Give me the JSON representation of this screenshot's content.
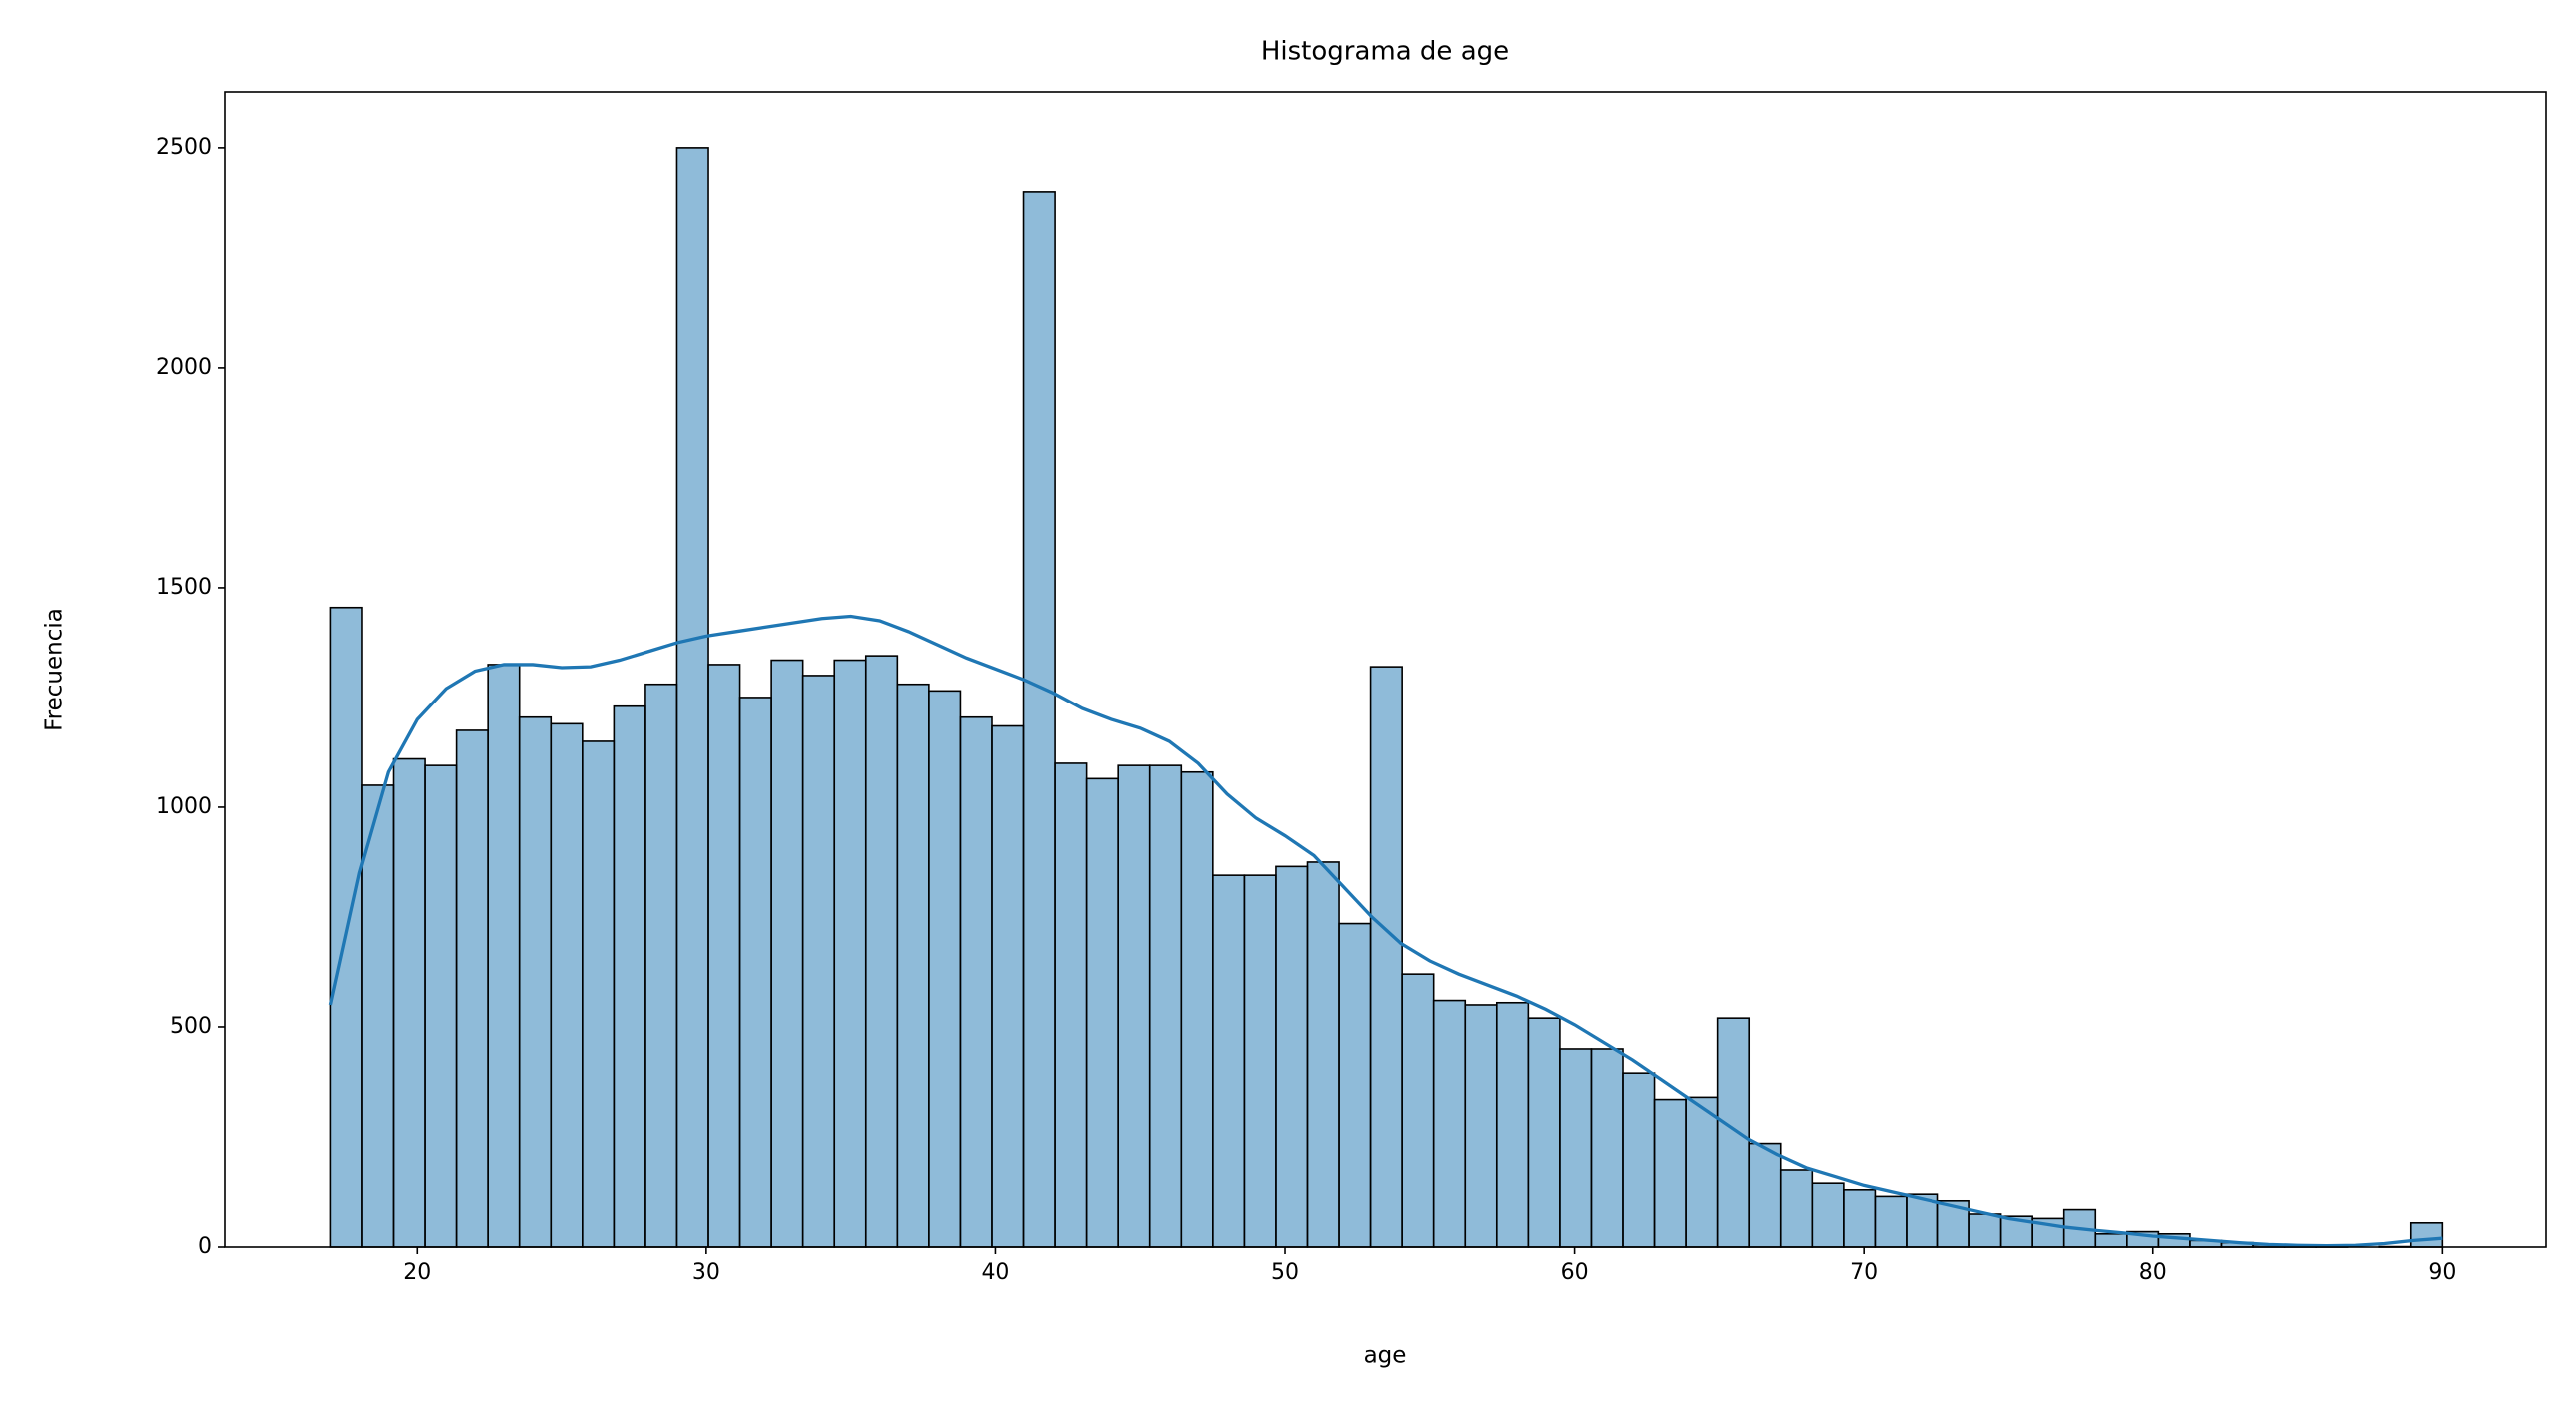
{
  "chart_data": {
    "type": "histogram",
    "title": "Histograma de age",
    "x_label": "age",
    "y_label": "Frecuencia",
    "bins": [
      17,
      18.09,
      19.179,
      20.269,
      21.358,
      22.448,
      23.537,
      24.627,
      25.716,
      26.806,
      27.896,
      28.985,
      30.075,
      31.164,
      32.254,
      33.343,
      34.433,
      35.522,
      36.612,
      37.701,
      38.791,
      39.881,
      40.97,
      42.06,
      43.149,
      44.239,
      45.328,
      46.418,
      47.507,
      48.597,
      49.687,
      50.776,
      51.866,
      52.955,
      54.045,
      55.134,
      56.224,
      57.313,
      58.403,
      59.493,
      60.582,
      61.672,
      62.761,
      63.851,
      64.94,
      66.03,
      67.119,
      68.209,
      69.299,
      70.388,
      71.478,
      72.567,
      73.657,
      74.746,
      75.836,
      76.925,
      78.015,
      79.104,
      80.194,
      81.284,
      82.373,
      83.463,
      84.552,
      85.642,
      86.731,
      87.821,
      88.91,
      90
    ],
    "values": [
      1455,
      1050,
      1110,
      1095,
      1175,
      1325,
      1205,
      1190,
      1150,
      1230,
      1280,
      2500,
      1325,
      1250,
      1335,
      1300,
      1335,
      1345,
      1280,
      1265,
      1205,
      1185,
      2400,
      1100,
      1065,
      1095,
      1095,
      1080,
      845,
      845,
      865,
      875,
      735,
      1320,
      620,
      560,
      550,
      555,
      520,
      450,
      450,
      395,
      335,
      340,
      520,
      235,
      175,
      145,
      130,
      115,
      120,
      105,
      75,
      70,
      65,
      85,
      30,
      35,
      30,
      15,
      10,
      5,
      3,
      2,
      0,
      1,
      55
    ],
    "color": "rgba(31,119,180,0.5)",
    "edgecolor": "#000000",
    "kde": {
      "color": "#1f77b4",
      "x": [
        17,
        18,
        19,
        20,
        21,
        22,
        23,
        24,
        25,
        26,
        27,
        28,
        29,
        30,
        31,
        32,
        33,
        34,
        35,
        36,
        37,
        38,
        39,
        40,
        41,
        42,
        43,
        44,
        45,
        46,
        47,
        48,
        49,
        50,
        51,
        52,
        53,
        54,
        55,
        56,
        57,
        58,
        59,
        60,
        61,
        62,
        63,
        64,
        65,
        66,
        67,
        68,
        69,
        70,
        71,
        72,
        73,
        74,
        75,
        76,
        77,
        78,
        79,
        80,
        81,
        82,
        83,
        84,
        85,
        86,
        87,
        88,
        89,
        90
      ],
      "values": [
        550,
        850,
        1080,
        1200,
        1270,
        1310,
        1325,
        1325,
        1318,
        1320,
        1335,
        1355,
        1375,
        1390,
        1400,
        1410,
        1420,
        1430,
        1435,
        1425,
        1400,
        1370,
        1340,
        1315,
        1290,
        1260,
        1225,
        1200,
        1180,
        1150,
        1100,
        1030,
        975,
        935,
        890,
        820,
        750,
        690,
        650,
        620,
        595,
        570,
        540,
        505,
        465,
        425,
        380,
        335,
        290,
        245,
        210,
        180,
        160,
        140,
        125,
        110,
        95,
        80,
        65,
        55,
        45,
        38,
        32,
        25,
        20,
        15,
        10,
        6,
        4,
        3,
        4,
        8,
        15,
        20
      ]
    },
    "xlim": [
      13.36,
      93.58
    ],
    "ylim": [
      0,
      2627
    ],
    "xticks": [
      20,
      30,
      40,
      50,
      60,
      70,
      80,
      90
    ],
    "yticks": [
      0,
      500,
      1000,
      1500,
      2000,
      2500
    ],
    "grid": false
  }
}
